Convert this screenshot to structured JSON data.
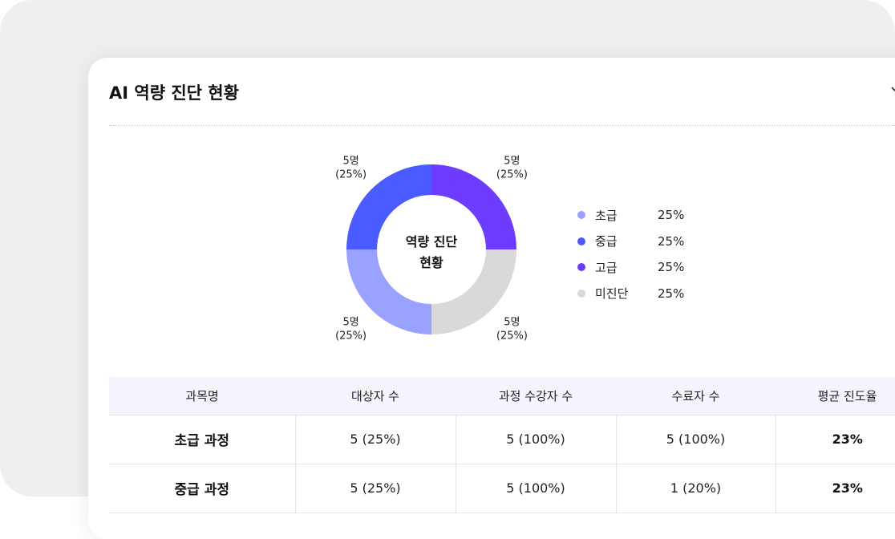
{
  "card": {
    "title": "AI 역량 진단 현황"
  },
  "colors": {
    "beginner": "#9aa2ff",
    "intermediate": "#4a5cff",
    "advanced": "#6e3cff",
    "undiagnosed": "#d9d9d9",
    "header_bg": "#f4f4fd"
  },
  "chart_data": {
    "type": "pie",
    "center_label": [
      "역량 진단",
      "현황"
    ],
    "segments": [
      {
        "name": "고급",
        "value": 25,
        "count_label": "5명",
        "pct_label": "(25%)",
        "color": "#6e3cff"
      },
      {
        "name": "미진단",
        "value": 25,
        "count_label": "5명",
        "pct_label": "(25%)",
        "color": "#d9d9d9"
      },
      {
        "name": "초급",
        "value": 25,
        "count_label": "5명",
        "pct_label": "(25%)",
        "color": "#9aa2ff"
      },
      {
        "name": "중급",
        "value": 25,
        "count_label": "5명",
        "pct_label": "(25%)",
        "color": "#4a5cff"
      }
    ],
    "legend": [
      {
        "label": "초급",
        "value": "25%",
        "color": "#9aa2ff"
      },
      {
        "label": "중급",
        "value": "25%",
        "color": "#4a5cff"
      },
      {
        "label": "고급",
        "value": "25%",
        "color": "#6e3cff"
      },
      {
        "label": "미진단",
        "value": "25%",
        "color": "#d9d9d9"
      }
    ]
  },
  "table": {
    "headers": [
      "과목명",
      "대상자 수",
      "과정 수강자 수",
      "수료자 수",
      "평균 진도율"
    ],
    "rows": [
      {
        "course": "초급 과정",
        "targets": "5 (25%)",
        "enrolled": "5 (100%)",
        "completed": "5 (100%)",
        "avg_progress": "23%"
      },
      {
        "course": "중급 과정",
        "targets": "5 (25%)",
        "enrolled": "5 (100%)",
        "completed": "1 (20%)",
        "avg_progress": "23%"
      }
    ]
  }
}
